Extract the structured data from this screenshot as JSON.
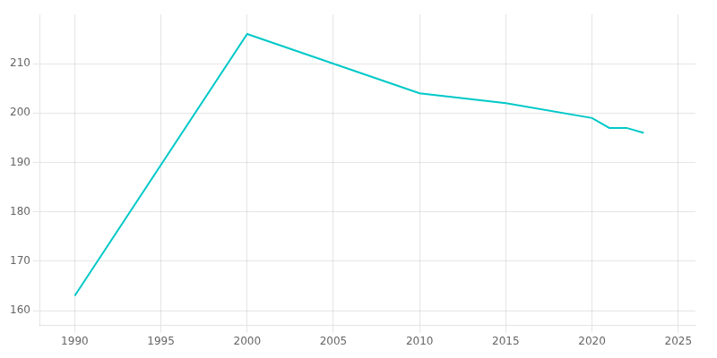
{
  "chart_data": {
    "type": "line",
    "x": [
      1990,
      2000,
      2010,
      2015,
      2020,
      2021,
      2022,
      2023
    ],
    "values": [
      163,
      216,
      204,
      202,
      199,
      197,
      197,
      196
    ],
    "color": "#00C8C8",
    "xlim": [
      1988,
      2026
    ],
    "xticks": [
      1990,
      1995,
      2000,
      2005,
      2010,
      2015,
      2020,
      2025
    ],
    "ylim": [
      157,
      220
    ],
    "yticks": [
      160,
      170,
      180,
      190,
      200,
      210
    ],
    "grid": true
  }
}
